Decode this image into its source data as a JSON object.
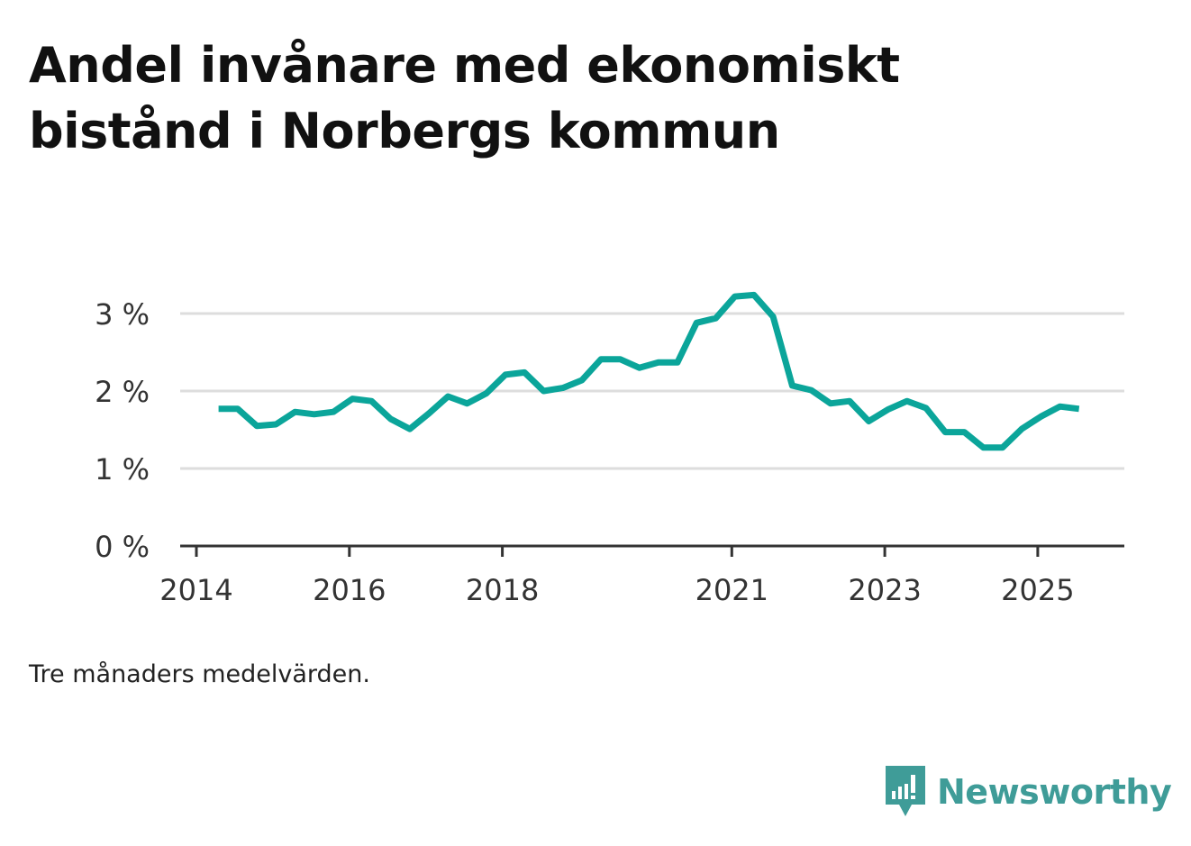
{
  "title": "Andel invånare med ekonomiskt bistånd i Norbergs kommun",
  "note": "Tre månaders medelvärden.",
  "brand": "Newsworthy",
  "colors": {
    "line": "#0ba59a",
    "grid": "#dddddd",
    "axis": "#333333",
    "brand": "#3f9c98"
  },
  "chart_data": {
    "type": "line",
    "title": "Andel invånare med ekonomiskt bistånd i Norbergs kommun",
    "xlabel": "",
    "ylabel": "",
    "ylim": [
      0,
      3
    ],
    "xlim": [
      2014,
      2026.2
    ],
    "grid": true,
    "y_ticks": [
      0,
      1,
      2,
      3
    ],
    "y_tick_labels": [
      "0 %",
      "1 %",
      "2 %",
      "3 %"
    ],
    "x_ticks": [
      2014,
      2016,
      2018,
      2021,
      2023,
      2025
    ],
    "x_tick_labels": [
      "2014",
      "2016",
      "2018",
      "2021",
      "2023",
      "2025"
    ],
    "series": [
      {
        "name": "Andel invånare med ekonomiskt bistånd",
        "x": [
          2014.29,
          2014.54,
          2014.79,
          2015.04,
          2015.29,
          2015.54,
          2015.79,
          2016.04,
          2016.29,
          2016.54,
          2016.79,
          2017.04,
          2017.29,
          2017.54,
          2017.79,
          2018.04,
          2018.29,
          2018.54,
          2018.79,
          2019.04,
          2019.29,
          2019.54,
          2019.79,
          2020.04,
          2020.29,
          2020.54,
          2020.79,
          2021.04,
          2021.29,
          2021.54,
          2021.79,
          2022.04,
          2022.29,
          2022.54,
          2022.79,
          2023.04,
          2023.29,
          2023.54,
          2023.79,
          2024.04,
          2024.29,
          2024.54,
          2024.79,
          2025.04,
          2025.29,
          2025.54
        ],
        "values": [
          1.77,
          1.77,
          1.55,
          1.57,
          1.73,
          1.7,
          1.73,
          1.9,
          1.87,
          1.64,
          1.51,
          1.71,
          1.93,
          1.84,
          1.97,
          2.21,
          2.24,
          2.0,
          2.04,
          2.14,
          2.41,
          2.41,
          2.3,
          2.37,
          2.37,
          2.88,
          2.94,
          3.22,
          3.24,
          2.96,
          2.07,
          2.01,
          1.84,
          1.87,
          1.61,
          1.76,
          1.87,
          1.78,
          1.47,
          1.47,
          1.27,
          1.27,
          1.51,
          1.67,
          1.8,
          1.77
        ]
      }
    ]
  }
}
